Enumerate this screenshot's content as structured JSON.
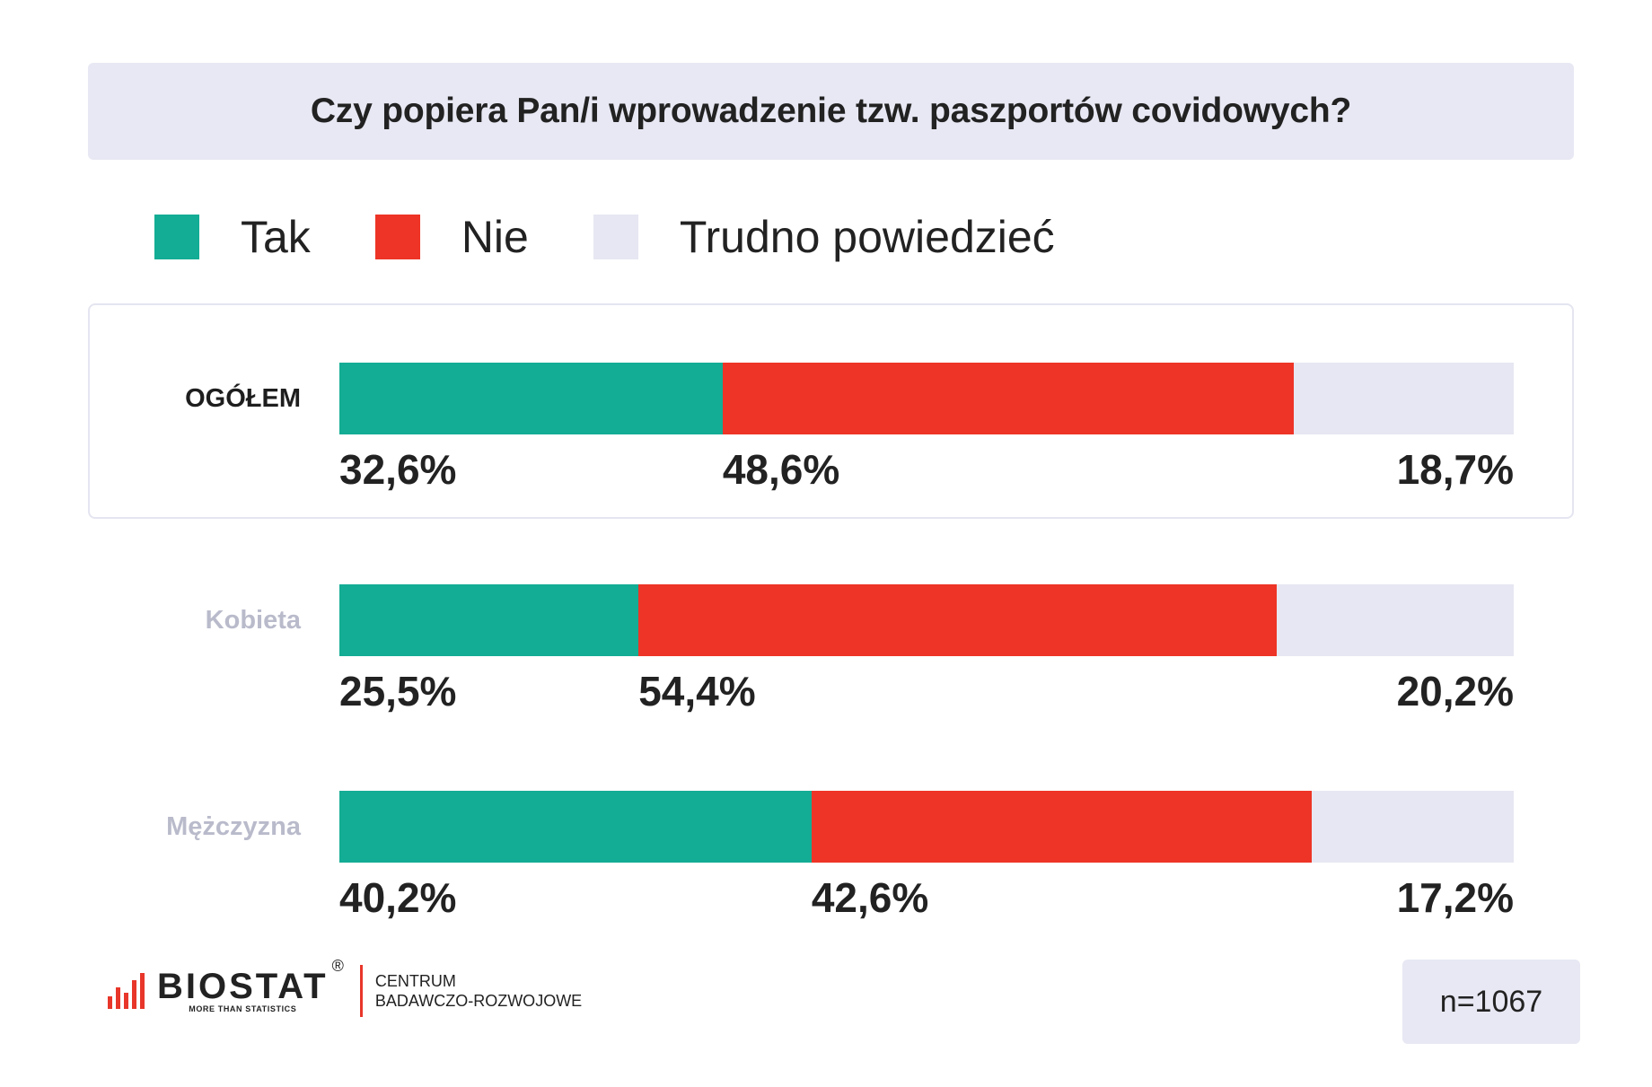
{
  "chart_data": {
    "type": "bar",
    "orientation": "horizontal",
    "stacked": true,
    "title": "Czy popiera Pan/i wprowadzenie tzw. paszportów covidowych?",
    "categories": [
      "OGÓŁEM",
      "Kobieta",
      "Mężczyzna"
    ],
    "series": [
      {
        "name": "Tak",
        "values": [
          32.6,
          25.5,
          40.2
        ],
        "labels": [
          "32,6%",
          "25,5%",
          "40,2%"
        ],
        "color": "#13ac94"
      },
      {
        "name": "Nie",
        "values": [
          48.6,
          54.4,
          42.6
        ],
        "labels": [
          "48,6%",
          "54,4%",
          "42,6%"
        ],
        "color": "#ee3426"
      },
      {
        "name": "Trudno powiedzieć",
        "values": [
          18.7,
          20.2,
          17.2
        ],
        "labels": [
          "18,7%",
          "20,2%",
          "17,2%"
        ],
        "color": "#e6e7f2"
      }
    ],
    "xlim": [
      0,
      100
    ],
    "legend": "top-left",
    "grid": false
  },
  "label_colors": {
    "highlight": "#1e1e1e",
    "muted": "#b9bbcb"
  },
  "footer": {
    "brand": "BIOSTAT",
    "brand_mark": "®",
    "tagline": "MORE THAN STATISTICS",
    "unit_line1": "CENTRUM",
    "unit_line2": "BADAWCZO-ROZWOJOWE",
    "sample": "n=1067",
    "logo_icon": "bar-chart-icon"
  }
}
